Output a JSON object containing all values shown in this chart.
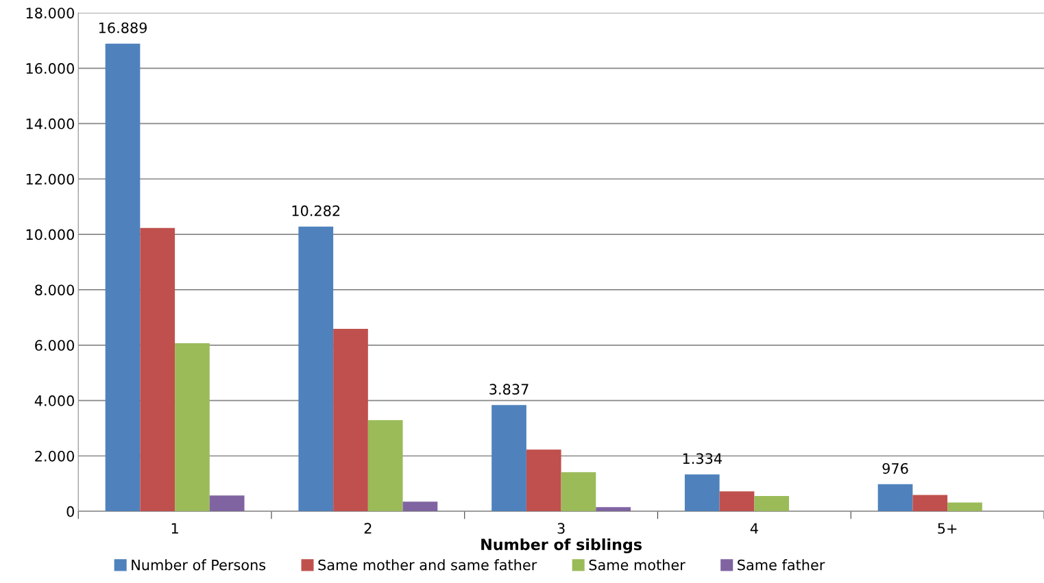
{
  "chart_data": {
    "type": "bar",
    "xlabel": "Number of siblings",
    "categories": [
      "1",
      "2",
      "3",
      "4",
      "5+"
    ],
    "series": [
      {
        "name": "Number of Persons",
        "color": "#4f81bd",
        "values": [
          16889,
          10282,
          3837,
          1334,
          976
        ],
        "value_labels": [
          "16.889",
          "10.282",
          "3.837",
          "1.334",
          "976"
        ]
      },
      {
        "name": "Same mother and same father",
        "color": "#c0504d",
        "values": [
          10230,
          6590,
          2230,
          720,
          590
        ]
      },
      {
        "name": "Same mother",
        "color": "#9bbb59",
        "values": [
          6070,
          3290,
          1410,
          550,
          320
        ]
      },
      {
        "name": "Same father",
        "color": "#8064a2",
        "values": [
          570,
          350,
          150,
          null,
          null
        ]
      }
    ],
    "ylim": [
      0,
      18000
    ],
    "yticks": [
      {
        "value": 0,
        "label": "0"
      },
      {
        "value": 2000,
        "label": "2.000"
      },
      {
        "value": 4000,
        "label": "4.000"
      },
      {
        "value": 6000,
        "label": "6.000"
      },
      {
        "value": 8000,
        "label": "8.000"
      },
      {
        "value": 10000,
        "label": "10.000"
      },
      {
        "value": 12000,
        "label": "12.000"
      },
      {
        "value": 14000,
        "label": "14.000"
      },
      {
        "value": 16000,
        "label": "16.000"
      },
      {
        "value": 18000,
        "label": "18.000"
      }
    ],
    "grid": "y",
    "legend": "bottom"
  }
}
